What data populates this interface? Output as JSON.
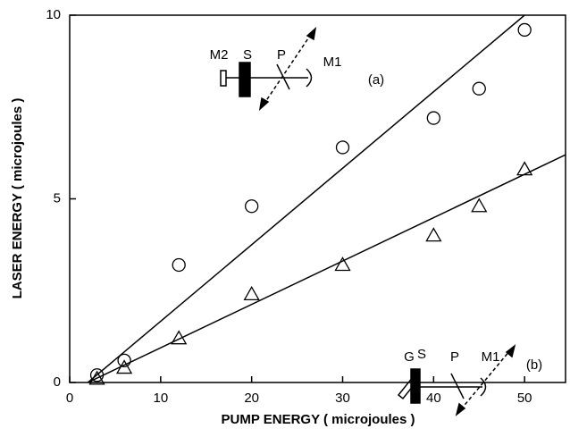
{
  "chart_data": {
    "type": "scatter",
    "x_label": "PUMP ENERGY ( microjoules )",
    "y_label": "LASER ENERGY ( microjoules )",
    "x": [
      3,
      6,
      12,
      20,
      30,
      40,
      45,
      50
    ],
    "series": [
      {
        "name": "(a)",
        "marker": "circle",
        "color": "#000000",
        "values": [
          0.2,
          0.6,
          3.2,
          4.8,
          6.4,
          7.2,
          8.0,
          9.6
        ]
      },
      {
        "name": "(b)",
        "marker": "triangle",
        "color": "#000000",
        "values": [
          0.1,
          0.4,
          1.2,
          2.4,
          3.2,
          4.0,
          4.8,
          5.8
        ]
      }
    ],
    "fit_lines": [
      {
        "x": [
          2,
          50
        ],
        "values": [
          0,
          10
        ]
      },
      {
        "x": [
          2,
          54.5
        ],
        "values": [
          0,
          6.2
        ]
      }
    ],
    "insets": [
      {
        "labels": [
          "M2",
          "S",
          "P",
          "M1"
        ]
      },
      {
        "labels": [
          "G",
          "S",
          "P",
          "M1"
        ]
      }
    ],
    "xlim": [
      0,
      54.5
    ],
    "ylim": [
      0,
      10
    ],
    "xticks": [
      0,
      10,
      20,
      30,
      40,
      50
    ],
    "yticks": [
      0,
      5,
      10
    ]
  }
}
